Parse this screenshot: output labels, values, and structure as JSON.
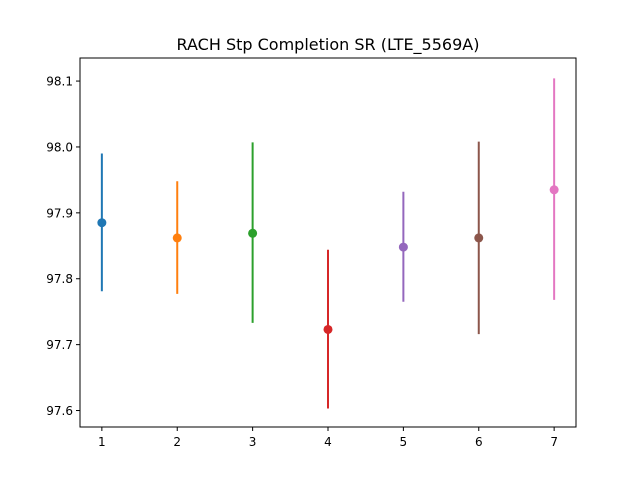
{
  "chart_data": {
    "type": "scatter",
    "title": "RACH Stp Completion SR (LTE_5569A)",
    "xlabel": "",
    "ylabel": "",
    "xlim": [
      0.71,
      7.29
    ],
    "ylim": [
      97.575,
      98.135
    ],
    "x_ticks": [
      1,
      2,
      3,
      4,
      5,
      6,
      7
    ],
    "y_ticks": [
      97.6,
      97.7,
      97.8,
      97.9,
      98.0,
      98.1
    ],
    "grid": false,
    "legend": "none",
    "series": [
      {
        "x": 1,
        "y": 97.885,
        "low": 97.781,
        "high": 97.99,
        "color": "#1f77b4"
      },
      {
        "x": 2,
        "y": 97.862,
        "low": 97.777,
        "high": 97.948,
        "color": "#ff7f0e"
      },
      {
        "x": 3,
        "y": 97.869,
        "low": 97.733,
        "high": 98.007,
        "color": "#2ca02c"
      },
      {
        "x": 4,
        "y": 97.723,
        "low": 97.603,
        "high": 97.844,
        "color": "#d62728"
      },
      {
        "x": 5,
        "y": 97.848,
        "low": 97.765,
        "high": 97.932,
        "color": "#9467bd"
      },
      {
        "x": 6,
        "y": 97.862,
        "low": 97.716,
        "high": 98.008,
        "color": "#8c564b"
      },
      {
        "x": 7,
        "y": 97.935,
        "low": 97.768,
        "high": 98.104,
        "color": "#e377c2"
      }
    ]
  }
}
